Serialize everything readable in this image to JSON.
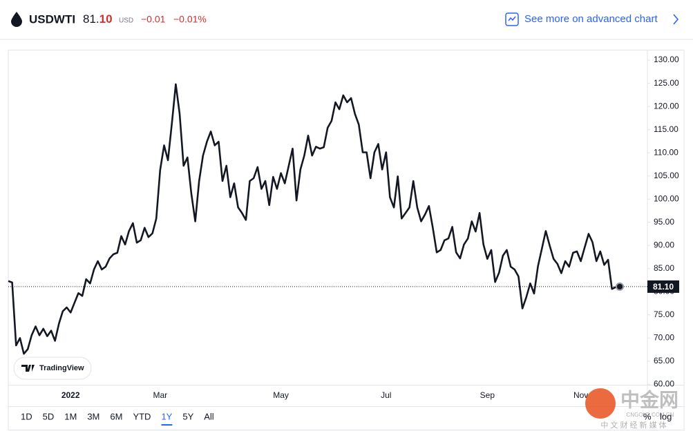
{
  "header": {
    "symbol": "USDWTI",
    "price_main": "81.",
    "price_fraction": "10",
    "currency": "USD",
    "change": "−0.01",
    "change_pct": "−0.01%",
    "link": "See more on advanced chart"
  },
  "ranges": [
    "1D",
    "5D",
    "1M",
    "3M",
    "6M",
    "YTD",
    "1Y",
    "5Y",
    "All"
  ],
  "active_range": 6,
  "scale_options": [
    "%",
    "log"
  ],
  "brand": "TradingView",
  "watermark": {
    "name": "中金网",
    "site": "CNGOLD.COM.CN",
    "slogan": "中 文 财 经 新 媒 体"
  },
  "chart_data": {
    "type": "line",
    "color": "#131722",
    "categories": [
      null,
      null,
      null,
      null,
      null,
      null,
      null,
      null,
      null,
      null,
      null,
      null,
      null,
      null,
      null,
      null,
      "2022",
      null,
      null,
      null,
      null,
      null,
      null,
      null,
      null,
      null,
      null,
      null,
      null,
      null,
      null,
      null,
      null,
      null,
      null,
      null,
      null,
      null,
      null,
      "Mar",
      null,
      null,
      null,
      null,
      null,
      null,
      null,
      null,
      null,
      null,
      null,
      null,
      null,
      null,
      null,
      null,
      null,
      null,
      null,
      null,
      null,
      null,
      null,
      null,
      null,
      null,
      null,
      null,
      null,
      null,
      "May",
      null,
      null,
      null,
      null,
      null,
      null,
      null,
      null,
      null,
      null,
      null,
      null,
      null,
      null,
      null,
      null,
      null,
      null,
      null,
      null,
      null,
      null,
      null,
      null,
      null,
      null,
      "Jul",
      null,
      null,
      null,
      null,
      null,
      null,
      null,
      null,
      null,
      null,
      null,
      null,
      null,
      null,
      null,
      null,
      null,
      null,
      null,
      null,
      null,
      null,
      null,
      null,
      null,
      "Sep",
      null,
      null,
      null,
      null,
      null,
      null,
      null,
      null,
      null,
      null,
      null,
      null,
      null,
      null,
      null,
      null,
      null,
      null,
      null,
      null,
      null,
      null,
      null,
      "Nov",
      null,
      null,
      null,
      null,
      null,
      null,
      null,
      null,
      null,
      null
    ],
    "values": [
      82.3,
      82,
      68.4,
      70,
      66.6,
      67.6,
      70.6,
      72.5,
      70.6,
      72,
      70.4,
      71.6,
      69.4,
      73.1,
      75.8,
      76.6,
      75.5,
      77.6,
      79.7,
      79.1,
      82.7,
      81.8,
      84.8,
      86.6,
      84.8,
      85.4,
      87.2,
      88.1,
      88.4,
      92,
      90.2,
      93.1,
      94.8,
      90.6,
      91.1,
      93.8,
      91.8,
      92.6,
      95.8,
      106.3,
      111.6,
      108.4,
      116.4,
      124.8,
      118.4,
      107.2,
      109,
      101.2,
      95.2,
      103.9,
      109.4,
      112.4,
      114.6,
      111.6,
      112.4,
      103.9,
      107.2,
      100.4,
      103.4,
      98.2,
      97,
      95.5,
      103.9,
      104.5,
      106.9,
      102.2,
      103.9,
      98.7,
      104.8,
      102.2,
      105.6,
      103.4,
      107.2,
      110.9,
      99.7,
      106.4,
      109.4,
      113.7,
      109.4,
      111.3,
      110.9,
      111.2,
      115.4,
      116.9,
      120.9,
      119.4,
      122.4,
      120.9,
      121.8,
      118.4,
      116.1,
      110.1,
      110.1,
      104.5,
      110.1,
      111.9,
      106.4,
      110.1,
      100.4,
      98.2,
      104.9,
      95.8,
      97,
      98.2,
      103.9,
      98.2,
      95.2,
      96.7,
      98.5,
      93.8,
      88.5,
      89,
      91.1,
      91.5,
      94,
      88.5,
      87.2,
      90.2,
      91.5,
      95.2,
      93,
      97,
      90.2,
      87.1,
      89,
      82.1,
      84.1,
      87.8,
      89,
      85.4,
      84.8,
      83.3,
      76.4,
      78.8,
      81.8,
      79.6,
      85.5,
      89.3,
      93.1,
      90,
      87.1,
      86,
      84,
      86.6,
      85.4,
      88.4,
      88.7,
      86.6,
      89.6,
      92.5,
      90.7,
      86.6,
      88.7,
      85.8,
      86.9,
      80.6,
      81,
      81.1
    ],
    "last_price_label": "81.10",
    "ylim": [
      59.9,
      132.1
    ],
    "yticks": [
      {
        "value": 60,
        "label": "60.00"
      },
      {
        "value": 65,
        "label": "65.00"
      },
      {
        "value": 70,
        "label": "70.00"
      },
      {
        "value": 75,
        "label": "75.00"
      },
      {
        "value": 80,
        "label": "80.00"
      },
      {
        "value": 85,
        "label": "85.00"
      },
      {
        "value": 90,
        "label": "90.00"
      },
      {
        "value": 95,
        "label": "95.00"
      },
      {
        "value": 100,
        "label": "100.00"
      },
      {
        "value": 105,
        "label": "105.00"
      },
      {
        "value": 110,
        "label": "110.00"
      },
      {
        "value": 115,
        "label": "115.00"
      },
      {
        "value": 120,
        "label": "120.00"
      },
      {
        "value": 125,
        "label": "125.00"
      },
      {
        "value": 130,
        "label": "130.00"
      }
    ],
    "grid": false
  }
}
